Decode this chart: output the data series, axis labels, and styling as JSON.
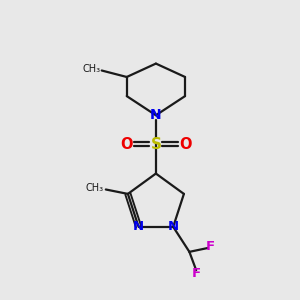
{
  "bg_color": "#e8e8e8",
  "line_color": "#1a1a1a",
  "N_color": "#0000ee",
  "S_color": "#bbbb00",
  "O_color": "#ee0000",
  "F_color": "#cc00cc",
  "bond_lw": 1.6,
  "figsize": [
    3.0,
    3.0
  ],
  "dpi": 100,
  "xlim": [
    0,
    10
  ],
  "ylim": [
    0,
    10
  ]
}
